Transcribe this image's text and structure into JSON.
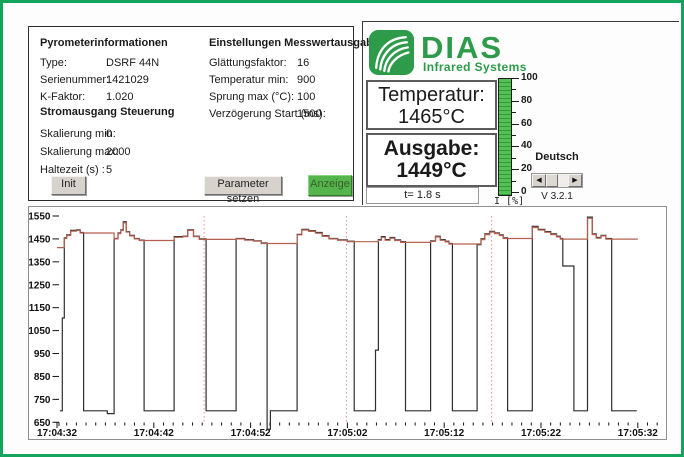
{
  "window": {
    "version": "V 3.2.1"
  },
  "info_panel": {
    "group1_title": "Pyrometerinformationen",
    "group1_rows": [
      {
        "label": "Type:",
        "value": "DSRF 44N"
      },
      {
        "label": "Serienummer:",
        "value": "1421029"
      },
      {
        "label": "K-Faktor:",
        "value": "1.020"
      }
    ],
    "group2_title": "Stromausgang Steuerung",
    "group2_rows": [
      {
        "label": "Skalierung min:",
        "value": "0"
      },
      {
        "label": "Skalierung max:",
        "value": "2000"
      },
      {
        "label": "Haltezeit (s) :",
        "value": "5"
      }
    ],
    "group3_title": "Einstellungen Messwertausgabe",
    "group3_rows": [
      {
        "label": "Glättungsfaktor:",
        "value": "16"
      },
      {
        "label": "Temperatur min:",
        "value": "900"
      },
      {
        "label": "Sprung max (°C):",
        "value": "100"
      },
      {
        "label": "Verzögerung Start (ms):",
        "value": "1500"
      }
    ],
    "init_button": "Init",
    "param_button": "Parameter setzen",
    "anzeige_button": "Anzeige"
  },
  "brand": {
    "name": "DIAS",
    "subtitle": "Infrared Systems",
    "green": "#2e9b4a"
  },
  "readouts": {
    "temperature_label": "Temperatur:",
    "temperature_value": "1465°C",
    "output_label": "Ausgabe:",
    "output_value": "1449°C",
    "time_display": "t= 1.8 s"
  },
  "gauge": {
    "axis_label": "I [%]",
    "tick_labels": [
      100,
      80,
      60,
      40,
      20,
      0
    ],
    "value_percent": 100,
    "bar_color": "#53c153"
  },
  "language": {
    "selected": "Deutsch"
  },
  "chart_data": {
    "type": "line",
    "x_tick_labels": [
      "17:04:32",
      "17:04:42",
      "17:04:52",
      "17:05:02",
      "17:05:12",
      "17:05:22",
      "17:05:32"
    ],
    "x_tick_seconds": [
      0,
      10,
      20,
      30,
      40,
      50,
      60
    ],
    "x_minor_step_s": 1,
    "xlim_s": [
      0,
      62
    ],
    "ylim": [
      650,
      1550
    ],
    "yticks": [
      650,
      750,
      850,
      950,
      1050,
      1150,
      1250,
      1350,
      1450,
      1550
    ],
    "grid_vlines_s": [
      15.2,
      29.9,
      44.9
    ],
    "grid_vline_color": "#e08f8b",
    "series": [
      {
        "name": "Temperatur",
        "color": "#2e2e2e",
        "end_t": 59.9,
        "steps": [
          [
            0.3,
            700
          ],
          [
            0.55,
            1105
          ],
          [
            0.75,
            1455
          ],
          [
            1.0,
            1468
          ],
          [
            1.4,
            1487
          ],
          [
            2.0,
            1490
          ],
          [
            2.4,
            1478
          ],
          [
            2.75,
            700
          ],
          [
            5.2,
            688
          ],
          [
            5.9,
            1452
          ],
          [
            6.3,
            1476
          ],
          [
            6.6,
            1490
          ],
          [
            6.85,
            1525
          ],
          [
            7.15,
            1482
          ],
          [
            7.5,
            1466
          ],
          [
            8.0,
            1452
          ],
          [
            8.5,
            1445
          ],
          [
            9.0,
            700
          ],
          [
            12.1,
            1460
          ],
          [
            13.0,
            1462
          ],
          [
            13.5,
            1490
          ],
          [
            14.1,
            1462
          ],
          [
            14.7,
            1450
          ],
          [
            15.4,
            700
          ],
          [
            18.5,
            1452
          ],
          [
            19.4,
            1447
          ],
          [
            20.3,
            1442
          ],
          [
            21.1,
            1432
          ],
          [
            21.7,
            620
          ],
          [
            22.05,
            700
          ],
          [
            24.8,
            1470
          ],
          [
            25.3,
            1492
          ],
          [
            26.0,
            1486
          ],
          [
            26.7,
            1478
          ],
          [
            27.4,
            1464
          ],
          [
            28.1,
            1452
          ],
          [
            29.0,
            1446
          ],
          [
            30.0,
            1440
          ],
          [
            30.7,
            700
          ],
          [
            32.9,
            965
          ],
          [
            33.2,
            1447
          ],
          [
            33.5,
            1460
          ],
          [
            33.9,
            1447
          ],
          [
            34.4,
            1456
          ],
          [
            34.9,
            1446
          ],
          [
            35.5,
            1438
          ],
          [
            36.0,
            700
          ],
          [
            38.6,
            1442
          ],
          [
            39.1,
            1462
          ],
          [
            39.6,
            1447
          ],
          [
            40.1,
            1440
          ],
          [
            40.5,
            1430
          ],
          [
            40.85,
            700
          ],
          [
            43.4,
            1425
          ],
          [
            43.8,
            1450
          ],
          [
            44.2,
            1472
          ],
          [
            44.7,
            1483
          ],
          [
            45.2,
            1476
          ],
          [
            45.7,
            1468
          ],
          [
            46.1,
            1455
          ],
          [
            46.55,
            700
          ],
          [
            49.1,
            1505
          ],
          [
            49.7,
            1492
          ],
          [
            50.4,
            1482
          ],
          [
            51.0,
            1472
          ],
          [
            51.6,
            1462
          ],
          [
            52.0,
            1452
          ],
          [
            52.25,
            1332
          ],
          [
            53.4,
            700
          ],
          [
            54.8,
            1545
          ],
          [
            55.3,
            1472
          ],
          [
            55.7,
            1456
          ],
          [
            56.2,
            1466
          ],
          [
            56.7,
            1452
          ],
          [
            57.3,
            700
          ],
          [
            59.9,
            700
          ]
        ]
      },
      {
        "name": "Ausgabe",
        "color": "#b4604f",
        "end_t": 60.0,
        "steps": [
          [
            0.0,
            1412
          ],
          [
            0.75,
            1452
          ],
          [
            1.0,
            1465
          ],
          [
            1.4,
            1484
          ],
          [
            2.0,
            1487
          ],
          [
            2.4,
            1476
          ],
          [
            5.9,
            1450
          ],
          [
            6.3,
            1473
          ],
          [
            6.6,
            1487
          ],
          [
            6.85,
            1520
          ],
          [
            7.15,
            1480
          ],
          [
            7.5,
            1463
          ],
          [
            8.0,
            1450
          ],
          [
            8.5,
            1443
          ],
          [
            12.1,
            1457
          ],
          [
            13.0,
            1460
          ],
          [
            13.5,
            1487
          ],
          [
            14.1,
            1460
          ],
          [
            14.7,
            1448
          ],
          [
            18.5,
            1450
          ],
          [
            19.4,
            1445
          ],
          [
            20.3,
            1440
          ],
          [
            21.1,
            1430
          ],
          [
            24.8,
            1468
          ],
          [
            25.3,
            1489
          ],
          [
            26.0,
            1483
          ],
          [
            26.7,
            1475
          ],
          [
            27.4,
            1461
          ],
          [
            28.1,
            1450
          ],
          [
            29.0,
            1444
          ],
          [
            30.0,
            1438
          ],
          [
            33.2,
            1444
          ],
          [
            33.5,
            1457
          ],
          [
            33.9,
            1444
          ],
          [
            34.4,
            1453
          ],
          [
            34.9,
            1443
          ],
          [
            35.5,
            1435
          ],
          [
            38.6,
            1439
          ],
          [
            39.1,
            1459
          ],
          [
            39.6,
            1444
          ],
          [
            40.1,
            1437
          ],
          [
            40.5,
            1428
          ],
          [
            43.4,
            1428
          ],
          [
            43.8,
            1447
          ],
          [
            44.2,
            1469
          ],
          [
            44.7,
            1480
          ],
          [
            45.2,
            1473
          ],
          [
            45.7,
            1465
          ],
          [
            46.1,
            1452
          ],
          [
            49.1,
            1500
          ],
          [
            49.7,
            1489
          ],
          [
            50.4,
            1479
          ],
          [
            51.0,
            1469
          ],
          [
            51.6,
            1459
          ],
          [
            52.0,
            1449
          ],
          [
            54.8,
            1540
          ],
          [
            55.3,
            1469
          ],
          [
            55.7,
            1453
          ],
          [
            56.2,
            1463
          ],
          [
            56.7,
            1449
          ],
          [
            60.0,
            1449
          ]
        ]
      }
    ]
  }
}
